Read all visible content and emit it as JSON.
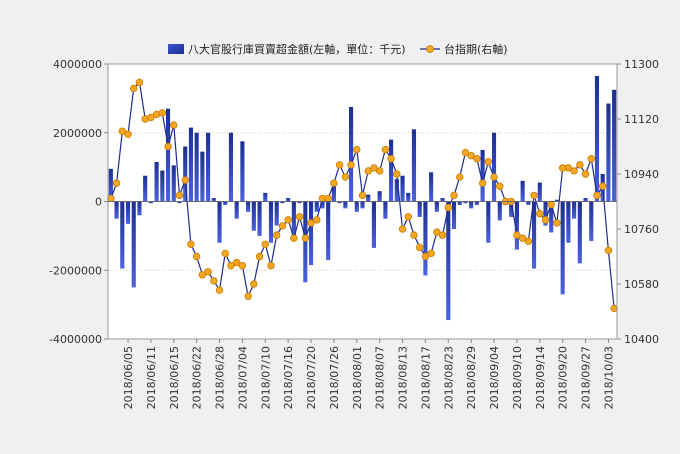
{
  "chart_data": {
    "type": "bar+line",
    "title": "",
    "legend": {
      "placement": "top",
      "items": [
        {
          "label": "八大官股行庫買賣超金額(左軸，單位：千元)",
          "marker": "bar"
        },
        {
          "label": "台指期(右軸)",
          "marker": "line-dot"
        }
      ]
    },
    "y_left": {
      "min": -4000000,
      "max": 4000000,
      "ticks": [
        4000000,
        2000000,
        0,
        -2000000,
        -4000000
      ],
      "tick_labels": [
        "4000000",
        "2000000",
        "0",
        "-2000000",
        "-4000000"
      ]
    },
    "y_right": {
      "min": 10400,
      "max": 11300,
      "ticks": [
        11300,
        11120,
        10940,
        10760,
        10580,
        10400
      ],
      "tick_labels": [
        "11300",
        "11120",
        "10940",
        "10760",
        "10580",
        "10400"
      ]
    },
    "x_tick_labels": [
      {
        "label": "2018/06/05",
        "index": 3
      },
      {
        "label": "2018/06/11",
        "index": 7
      },
      {
        "label": "2018/06/15",
        "index": 11
      },
      {
        "label": "2018/06/22",
        "index": 15
      },
      {
        "label": "2018/06/28",
        "index": 19
      },
      {
        "label": "2018/07/04",
        "index": 23
      },
      {
        "label": "2018/07/10",
        "index": 27
      },
      {
        "label": "2018/07/16",
        "index": 31
      },
      {
        "label": "2018/07/20",
        "index": 35
      },
      {
        "label": "2018/07/26",
        "index": 39
      },
      {
        "label": "2018/08/01",
        "index": 43
      },
      {
        "label": "2018/08/07",
        "index": 47
      },
      {
        "label": "2018/08/13",
        "index": 51
      },
      {
        "label": "2018/08/17",
        "index": 55
      },
      {
        "label": "2018/08/23",
        "index": 59
      },
      {
        "label": "2018/08/29",
        "index": 63
      },
      {
        "label": "2018/09/04",
        "index": 67
      },
      {
        "label": "2018/09/10",
        "index": 71
      },
      {
        "label": "2018/09/14",
        "index": 75
      },
      {
        "label": "2018/09/20",
        "index": 79
      },
      {
        "label": "2018/09/27",
        "index": 83
      },
      {
        "label": "2018/10/03",
        "index": 87
      }
    ],
    "series": [
      {
        "name": "八大官股行庫買賣超金額(左軸，單位：千元)",
        "axis": "left",
        "type": "bar",
        "values": [
          950000,
          -500000,
          -1950000,
          -650000,
          -2500000,
          -400000,
          750000,
          -50000,
          1150000,
          900000,
          2700000,
          1050000,
          -50000,
          1600000,
          2150000,
          2000000,
          1450000,
          2000000,
          100000,
          -1200000,
          -100000,
          2000000,
          -500000,
          1750000,
          -300000,
          -850000,
          -1000000,
          250000,
          -1200000,
          -700000,
          -50000,
          100000,
          -1150000,
          -50000,
          -2350000,
          -1850000,
          -300000,
          -200000,
          -1700000,
          500000,
          -50000,
          -200000,
          2750000,
          -300000,
          -200000,
          200000,
          -1350000,
          300000,
          -500000,
          1800000,
          650000,
          750000,
          250000,
          2100000,
          -450000,
          -2150000,
          850000,
          -300000,
          100000,
          -3450000,
          -800000,
          -100000,
          -50000,
          -200000,
          -100000,
          1500000,
          -1200000,
          2000000,
          -550000,
          -100000,
          -450000,
          -1400000,
          600000,
          -100000,
          -1950000,
          550000,
          -700000,
          -900000,
          50000,
          -2700000,
          -1200000,
          -500000,
          -1800000,
          100000,
          -1150000,
          3650000,
          800000,
          2850000,
          3250000
        ]
      },
      {
        "name": "台指期(右軸)",
        "axis": "right",
        "type": "line",
        "values": [
          10860,
          10910,
          11080,
          11070,
          11220,
          11240,
          11120,
          11125,
          11135,
          11140,
          11030,
          11100,
          10870,
          10920,
          10710,
          10670,
          10610,
          10620,
          10590,
          10560,
          10680,
          10640,
          10650,
          10640,
          10540,
          10580,
          10670,
          10710,
          10640,
          10740,
          10770,
          10790,
          10730,
          10800,
          10730,
          10780,
          10790,
          10860,
          10860,
          10910,
          10970,
          10930,
          10970,
          11020,
          10870,
          10950,
          10960,
          10950,
          11020,
          10990,
          10940,
          10760,
          10800,
          10740,
          10700,
          10670,
          10680,
          10750,
          10740,
          10830,
          10870,
          10930,
          11010,
          11000,
          10990,
          10910,
          10980,
          10930,
          10900,
          10850,
          10850,
          10740,
          10730,
          10720,
          10870,
          10810,
          10790,
          10840,
          10780,
          10960,
          10960,
          10950,
          10970,
          10940,
          10990,
          10870,
          10900,
          10690,
          10500
        ]
      }
    ]
  }
}
